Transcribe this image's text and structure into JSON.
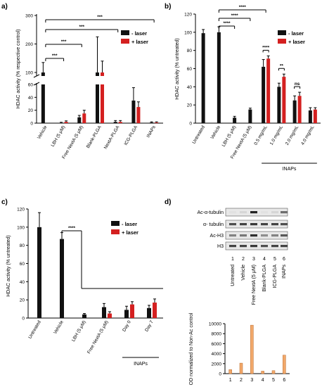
{
  "colors": {
    "no_laser": "#111111",
    "laser": "#d42020",
    "blot_bar": "#f2a86a",
    "blot_bar_edge": "#b86a2a"
  },
  "chart_data": [
    {
      "id": "a",
      "panel_label": "a)",
      "type": "bar",
      "ylabel": "HDAC activity (% respective control)",
      "y_break": {
        "lower": [
          0,
          60
        ],
        "upper": [
          100,
          300
        ]
      },
      "lower_ticks": [
        "0",
        "20",
        "40",
        "60"
      ],
      "upper_ticks": [
        "100",
        "200",
        "300"
      ],
      "categories": [
        "Vehicle",
        "LBH (5 μM)",
        "Free NextA (5 μM)",
        "Blank-PLGA",
        "NextA-PLGA",
        "ICG-PLGA",
        "INAPs"
      ],
      "series": [
        {
          "name": "- laser",
          "color": "#111111",
          "values": [
            100,
            0.5,
            9,
            100,
            2,
            35,
            1
          ],
          "errors": [
            35,
            0.8,
            3,
            125,
            2,
            20,
            1
          ]
        },
        {
          "name": "+ laser",
          "color": "#d42020",
          "values": [
            null,
            2,
            15,
            100,
            2,
            25,
            1
          ],
          "errors": [
            null,
            1.5,
            5,
            40,
            2,
            8,
            1
          ]
        }
      ],
      "significance": [
        {
          "label": "***",
          "from": 0,
          "to": 1
        },
        {
          "label": "***",
          "from": 0,
          "to": 2
        },
        {
          "label": "***",
          "from": 0,
          "to": 4
        },
        {
          "label": "***",
          "from": 0,
          "to": 6
        }
      ]
    },
    {
      "id": "b",
      "panel_label": "b)",
      "type": "bar",
      "ylabel": "HDAC activity (% untreated)",
      "ylim": [
        0,
        120
      ],
      "yticks": [
        "0",
        "20",
        "40",
        "60",
        "80",
        "100",
        "120"
      ],
      "categories": [
        "Untreated",
        "Vehicle",
        "LBH (5 μM)",
        "Free NextA (5 μM)",
        "0.5 mg/mL",
        "1.0 mg/mL",
        "2.0 mg/mL",
        "4.0 mg/mL"
      ],
      "group_label": "INAPs",
      "series": [
        {
          "name": "- laser",
          "color": "#111111",
          "values": [
            99,
            100,
            6,
            15,
            62,
            40,
            25,
            14
          ],
          "errors": [
            4,
            6,
            1.5,
            1.5,
            8,
            4,
            5,
            3
          ]
        },
        {
          "name": "+ laser",
          "color": "#d42020",
          "values": [
            null,
            null,
            null,
            null,
            71,
            51,
            30,
            15
          ],
          "errors": [
            null,
            null,
            null,
            null,
            3,
            3,
            4,
            2
          ]
        }
      ],
      "significance": [
        {
          "label": "****",
          "type": "bracket",
          "from": 1,
          "to": 2
        },
        {
          "label": "****",
          "type": "bracket",
          "from": 1,
          "to": 3
        },
        {
          "label": "****",
          "type": "bracket",
          "from": 1,
          "to": 4
        },
        {
          "label": "****",
          "type": "pair",
          "at": 4
        },
        {
          "label": "**",
          "type": "pair",
          "at": 5
        },
        {
          "label": "ns",
          "type": "pair",
          "at": 6
        }
      ]
    },
    {
      "id": "c",
      "panel_label": "c)",
      "type": "bar",
      "ylabel": "HDAC activity (% untreated)",
      "ylim": [
        0,
        120
      ],
      "yticks": [
        "0",
        "20",
        "40",
        "60",
        "80",
        "100",
        "120"
      ],
      "categories": [
        "Untreated",
        "Vehicle",
        "LBH (5 μM)",
        "Free NextA (5 μM)",
        "Day 0",
        "Day 7"
      ],
      "group_label": "INAPs",
      "series": [
        {
          "name": "- laser",
          "color": "#111111",
          "values": [
            100,
            87,
            4,
            12,
            9,
            11
          ],
          "errors": [
            16,
            7,
            1,
            4,
            4,
            3
          ]
        },
        {
          "name": "+ laser",
          "color": "#d42020",
          "values": [
            null,
            null,
            null,
            5,
            15,
            17
          ],
          "errors": [
            null,
            null,
            null,
            2,
            3,
            4
          ]
        }
      ],
      "significance": [
        {
          "label": "****",
          "from": 1,
          "to": 2
        }
      ]
    },
    {
      "id": "d",
      "panel_label": "d)",
      "type": "bar",
      "ylabel": "OD normalized to Non-Ac control",
      "ylim": [
        0,
        10000
      ],
      "yticks": [
        "0",
        "2000",
        "4000",
        "6000",
        "8000",
        "10000"
      ],
      "categories": [
        "1",
        "2",
        "3",
        "4",
        "5",
        "6"
      ],
      "values": [
        800,
        2100,
        9700,
        500,
        600,
        3700
      ]
    }
  ],
  "blot": {
    "rows": [
      "Ac-α-tubulin",
      "α- tubulin",
      "Ac-H3",
      "H3"
    ],
    "lane_numbers": [
      "1",
      "2",
      "3",
      "4",
      "5",
      "6"
    ],
    "lane_labels": [
      "Untreated",
      "Vehicle",
      "Free NextA (5 μM)",
      "Blank-PLGA",
      "ICG-PLGA",
      "INAPs"
    ],
    "band_intensity": [
      [
        0.05,
        0.1,
        0.95,
        0.05,
        0.1,
        0.6
      ],
      [
        0.75,
        0.8,
        0.85,
        0.8,
        0.8,
        0.75
      ],
      [
        0.5,
        0.55,
        0.9,
        0.45,
        0.5,
        0.7
      ],
      [
        0.8,
        0.8,
        0.85,
        0.75,
        0.8,
        0.8
      ]
    ]
  }
}
